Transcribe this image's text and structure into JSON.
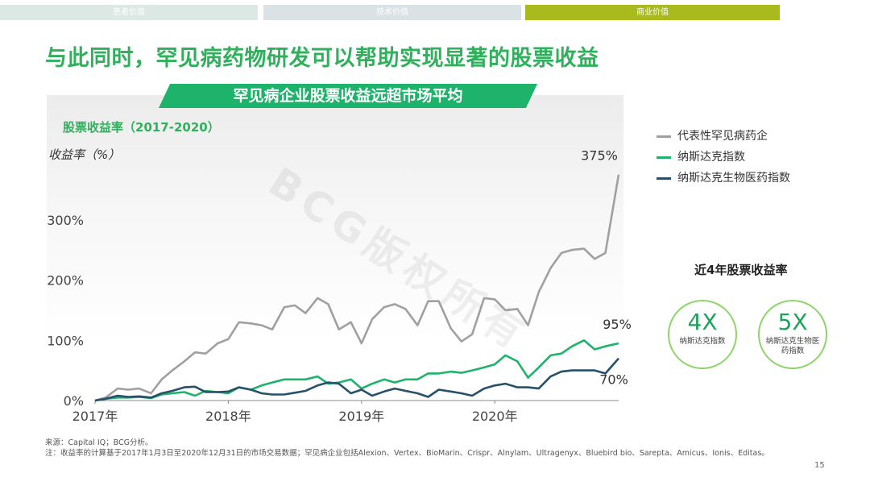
{
  "tabs": [
    {
      "label": "患者价值",
      "color": "#dbe8e3"
    },
    {
      "label": "技术价值",
      "color": "#dbe2e5"
    },
    {
      "label": "商业价值",
      "color": "#a9ba1f"
    }
  ],
  "title": "与此同时，罕见病药物研发可以帮助实现显著的股票收益",
  "chart_data": {
    "type": "line",
    "title": "罕见病企业股票收益远超市场平均",
    "subtitle": "股票收益率（2017-2020）",
    "ylabel": "收益率（%）",
    "xlabel": "",
    "ylim": [
      0,
      400
    ],
    "yticks": [
      0,
      100,
      200,
      300
    ],
    "ytick_labels": [
      "0%",
      "100%",
      "200%",
      "300%"
    ],
    "xlim": [
      2017.0,
      2020.93
    ],
    "xticks": [
      2017,
      2018,
      2019,
      2020
    ],
    "xtick_labels": [
      "2017年",
      "2018年",
      "2019年",
      "2020年"
    ],
    "grid": false,
    "legend_position": "right",
    "series": [
      {
        "name": "代表性罕见病药企",
        "color": "#a0a0a0",
        "end_label": "375%",
        "x": [
          2017.0,
          2017.08,
          2017.17,
          2017.25,
          2017.33,
          2017.42,
          2017.5,
          2017.58,
          2017.67,
          2017.75,
          2017.83,
          2017.92,
          2018.0,
          2018.08,
          2018.17,
          2018.25,
          2018.33,
          2018.42,
          2018.5,
          2018.58,
          2018.67,
          2018.75,
          2018.83,
          2018.92,
          2019.0,
          2019.08,
          2019.17,
          2019.25,
          2019.33,
          2019.42,
          2019.5,
          2019.58,
          2019.67,
          2019.75,
          2019.83,
          2019.92,
          2020.0,
          2020.08,
          2020.17,
          2020.25,
          2020.33,
          2020.42,
          2020.5,
          2020.58,
          2020.67,
          2020.75,
          2020.83,
          2020.93
        ],
        "values": [
          0,
          5,
          20,
          18,
          20,
          12,
          35,
          50,
          65,
          80,
          78,
          95,
          102,
          130,
          128,
          125,
          118,
          155,
          158,
          145,
          170,
          160,
          118,
          130,
          95,
          135,
          155,
          160,
          152,
          125,
          165,
          165,
          120,
          98,
          110,
          170,
          168,
          150,
          152,
          125,
          180,
          220,
          245,
          250,
          252,
          235,
          245,
          375
        ]
      },
      {
        "name": "纳斯达克指数",
        "color": "#1db36a",
        "end_label": "95%",
        "x": [
          2017.0,
          2017.08,
          2017.17,
          2017.25,
          2017.33,
          2017.42,
          2017.5,
          2017.58,
          2017.67,
          2017.75,
          2017.83,
          2017.92,
          2018.0,
          2018.08,
          2018.17,
          2018.25,
          2018.33,
          2018.42,
          2018.5,
          2018.58,
          2018.67,
          2018.75,
          2018.83,
          2018.92,
          2019.0,
          2019.08,
          2019.17,
          2019.25,
          2019.33,
          2019.42,
          2019.5,
          2019.58,
          2019.67,
          2019.75,
          2019.83,
          2019.92,
          2020.0,
          2020.08,
          2020.17,
          2020.25,
          2020.33,
          2020.42,
          2020.5,
          2020.58,
          2020.67,
          2020.75,
          2020.83,
          2020.93
        ],
        "values": [
          0,
          3,
          5,
          5,
          6,
          4,
          10,
          12,
          14,
          8,
          16,
          14,
          12,
          22,
          18,
          25,
          30,
          35,
          35,
          35,
          40,
          28,
          30,
          35,
          20,
          28,
          35,
          30,
          35,
          35,
          45,
          45,
          48,
          46,
          50,
          55,
          60,
          75,
          65,
          38,
          55,
          75,
          78,
          90,
          100,
          85,
          90,
          95
        ]
      },
      {
        "name": "纳斯达克生物医药指数",
        "color": "#27506b",
        "end_label": "70%",
        "x": [
          2017.0,
          2017.08,
          2017.17,
          2017.25,
          2017.33,
          2017.42,
          2017.5,
          2017.58,
          2017.67,
          2017.75,
          2017.83,
          2017.92,
          2018.0,
          2018.08,
          2018.17,
          2018.25,
          2018.33,
          2018.42,
          2018.5,
          2018.58,
          2018.67,
          2018.75,
          2018.83,
          2018.92,
          2019.0,
          2019.08,
          2019.17,
          2019.25,
          2019.33,
          2019.42,
          2019.5,
          2019.58,
          2019.67,
          2019.75,
          2019.83,
          2019.92,
          2020.0,
          2020.08,
          2020.17,
          2020.25,
          2020.33,
          2020.42,
          2020.5,
          2020.58,
          2020.67,
          2020.75,
          2020.83,
          2020.93
        ],
        "values": [
          0,
          3,
          8,
          6,
          7,
          5,
          12,
          16,
          22,
          23,
          14,
          14,
          15,
          22,
          18,
          12,
          10,
          10,
          13,
          16,
          25,
          30,
          28,
          12,
          18,
          8,
          15,
          20,
          16,
          12,
          6,
          18,
          15,
          12,
          8,
          20,
          25,
          28,
          22,
          22,
          20,
          40,
          48,
          50,
          50,
          50,
          45,
          70
        ]
      }
    ]
  },
  "kpi": {
    "title": "近4年股票收益率",
    "items": [
      {
        "value": "4X",
        "label": "纳斯达克指数"
      },
      {
        "value": "5X",
        "label": "纳斯达克生物医药指数"
      }
    ]
  },
  "footnote": {
    "source": "来源：Capital IQ；BCG分析。",
    "note": "注：收益率的计算基于2017年1月3日至2020年12月31日的市场交易数据；罕见病企业包括Alexion、Vertex、BioMarin、Crispr、Alnylam、Ultragenyx、Bluebird bio、Sarepta、Amicus、Ionis、Editas。"
  },
  "page_number": "15",
  "watermark": "BCG版权所有"
}
